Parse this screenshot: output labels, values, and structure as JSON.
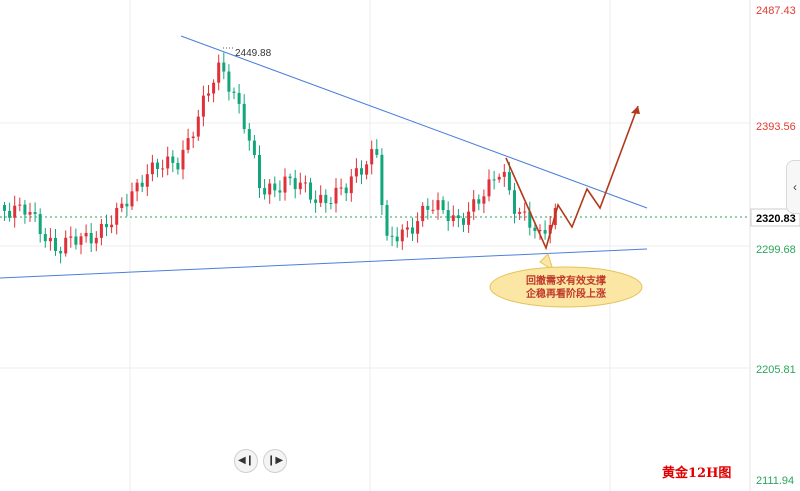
{
  "chart_data": {
    "type": "candlestick",
    "price_axis": {
      "ticks": [
        "2487.43",
        "2393.56",
        "2299.68",
        "2205.81",
        "2111.94"
      ],
      "current_price": "2320.83"
    },
    "high_annotation": "2449.88",
    "annotation": {
      "lines": [
        "回撤需求有效支撑",
        "企稳再看阶段上涨"
      ]
    },
    "watermark": "黄金12H图",
    "colors": {
      "up": "#e0303a",
      "down": "#12a67a",
      "trendline": "#4a7fdc",
      "projection": "#b23a1a",
      "current_price": "#2aa55c"
    }
  },
  "controls": {
    "prev_icon": "skip-back-icon",
    "play_icon": "skip-forward-icon",
    "side_tab_icon": "chevron-left-icon"
  }
}
